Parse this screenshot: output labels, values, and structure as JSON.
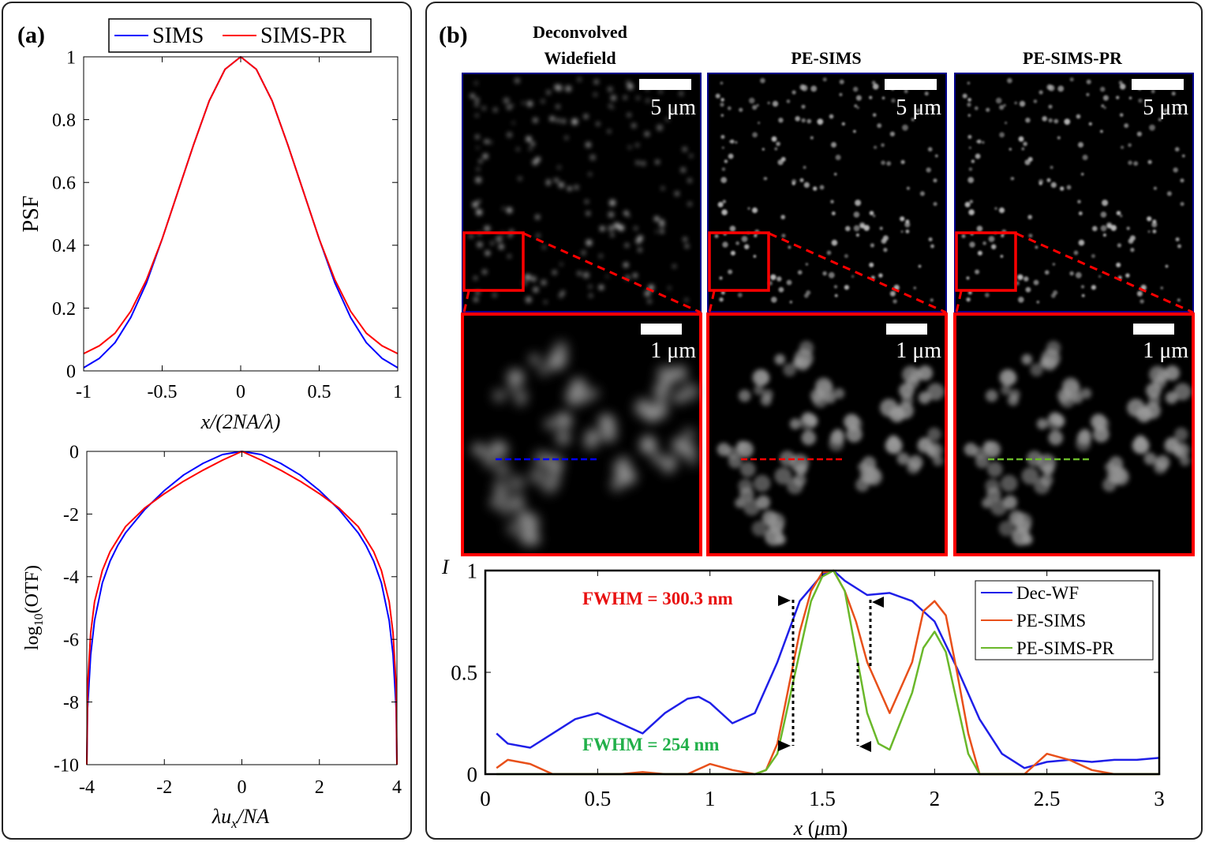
{
  "panel_a": {
    "label": "(a)",
    "legend": [
      "SIMS",
      "SIMS-PR"
    ]
  },
  "panel_b": {
    "label": "(b)",
    "columns": [
      {
        "title_line1": "Deconvolved",
        "title_line2": "Widefield"
      },
      {
        "title_line1": "",
        "title_line2": "PE-SIMS"
      },
      {
        "title_line1": "",
        "title_line2": "PE-SIMS-PR"
      }
    ],
    "scalebar_large": "5 μm",
    "scalebar_small": "1 μm",
    "fwhm_red": "FWHM = 300.3 nm",
    "fwhm_green": "FWHM = 254 nm"
  },
  "colors": {
    "sims": "#0000ff",
    "sims_pr": "#ff0000",
    "dec_wf": "#1f1fe8",
    "pe_sims": "#e8501a",
    "pe_sims_pr": "#6ab82a",
    "zoom_box": "#ff0000",
    "image_frame": "#00008b",
    "fwhm_red_text": "#e81010",
    "fwhm_green_text": "#22b04a"
  },
  "chart_data": [
    {
      "type": "line",
      "xlabel": "x/(2NA/λ)",
      "ylabel": "PSF",
      "xlim": [
        -1,
        1
      ],
      "ylim": [
        0,
        1
      ],
      "xticks": [
        "-1",
        "-0.5",
        "0",
        "0.5",
        "1"
      ],
      "yticks": [
        "0",
        "0.2",
        "0.4",
        "0.6",
        "0.8",
        "1"
      ],
      "legend": "top",
      "series": [
        {
          "name": "SIMS",
          "x": [
            -1,
            -0.9,
            -0.8,
            -0.7,
            -0.6,
            -0.5,
            -0.4,
            -0.3,
            -0.2,
            -0.1,
            0,
            0.1,
            0.2,
            0.3,
            0.4,
            0.5,
            0.6,
            0.7,
            0.8,
            0.9,
            1
          ],
          "values": [
            0.01,
            0.04,
            0.09,
            0.17,
            0.28,
            0.42,
            0.57,
            0.72,
            0.86,
            0.96,
            1,
            0.96,
            0.86,
            0.72,
            0.57,
            0.42,
            0.28,
            0.17,
            0.09,
            0.04,
            0.01
          ]
        },
        {
          "name": "SIMS-PR",
          "x": [
            -1,
            -0.9,
            -0.8,
            -0.7,
            -0.6,
            -0.5,
            -0.4,
            -0.3,
            -0.2,
            -0.1,
            0,
            0.1,
            0.2,
            0.3,
            0.4,
            0.5,
            0.6,
            0.7,
            0.8,
            0.9,
            1
          ],
          "values": [
            0.055,
            0.08,
            0.12,
            0.19,
            0.29,
            0.42,
            0.57,
            0.72,
            0.86,
            0.96,
            1,
            0.96,
            0.86,
            0.72,
            0.57,
            0.42,
            0.29,
            0.19,
            0.12,
            0.08,
            0.055
          ]
        }
      ]
    },
    {
      "type": "line",
      "xlabel": "λu_x/NA",
      "ylabel": "log10(OTF)",
      "xlim": [
        -4,
        4
      ],
      "ylim": [
        -10,
        0
      ],
      "xticks": [
        "-4",
        "-2",
        "0",
        "2",
        "4"
      ],
      "yticks": [
        "-10",
        "-8",
        "-6",
        "-4",
        "-2",
        "0"
      ],
      "series": [
        {
          "name": "SIMS",
          "x": [
            -4,
            -3.98,
            -3.9,
            -3.8,
            -3.6,
            -3.4,
            -3.2,
            -3,
            -2.5,
            -2,
            -1.5,
            -1,
            -0.5,
            0,
            0.5,
            1,
            1.5,
            2,
            2.5,
            3,
            3.2,
            3.4,
            3.6,
            3.8,
            3.9,
            3.98,
            4
          ],
          "values": [
            -10,
            -8.2,
            -6.5,
            -5.4,
            -4.2,
            -3.5,
            -3,
            -2.6,
            -1.85,
            -1.25,
            -0.75,
            -0.38,
            -0.1,
            0,
            -0.1,
            -0.38,
            -0.75,
            -1.25,
            -1.85,
            -2.6,
            -3,
            -3.5,
            -4.2,
            -5.4,
            -6.5,
            -8.2,
            -10
          ]
        },
        {
          "name": "SIMS-PR",
          "x": [
            -4,
            -3.98,
            -3.9,
            -3.8,
            -3.6,
            -3.4,
            -3.2,
            -3,
            -2.5,
            -2,
            -1.5,
            -1,
            -0.5,
            0,
            0.5,
            1,
            1.5,
            2,
            2.5,
            3,
            3.2,
            3.4,
            3.6,
            3.8,
            3.9,
            3.98,
            4
          ],
          "values": [
            -10,
            -7.5,
            -5.8,
            -4.8,
            -3.8,
            -3.2,
            -2.8,
            -2.4,
            -1.8,
            -1.35,
            -0.95,
            -0.6,
            -0.28,
            0,
            -0.28,
            -0.6,
            -0.95,
            -1.35,
            -1.8,
            -2.4,
            -2.8,
            -3.2,
            -3.8,
            -4.8,
            -5.8,
            -7.5,
            -10
          ]
        }
      ]
    },
    {
      "type": "line",
      "xlabel": "x (μm)",
      "ylabel": "I",
      "xlim": [
        0,
        3
      ],
      "ylim": [
        0,
        1
      ],
      "xticks": [
        "0",
        "0.5",
        "1",
        "1.5",
        "2",
        "2.5",
        "3"
      ],
      "yticks": [
        "0",
        "0.5",
        "1"
      ],
      "legend": "top-right",
      "series": [
        {
          "name": "Dec-WF",
          "x": [
            0.05,
            0.1,
            0.2,
            0.3,
            0.4,
            0.5,
            0.6,
            0.7,
            0.8,
            0.9,
            0.95,
            1,
            1.1,
            1.2,
            1.3,
            1.4,
            1.5,
            1.55,
            1.6,
            1.7,
            1.8,
            1.9,
            2,
            2.1,
            2.2,
            2.3,
            2.4,
            2.5,
            2.6,
            2.7,
            2.8,
            2.9,
            3
          ],
          "values": [
            0.2,
            0.15,
            0.13,
            0.2,
            0.27,
            0.3,
            0.25,
            0.2,
            0.3,
            0.37,
            0.38,
            0.35,
            0.25,
            0.3,
            0.55,
            0.85,
            0.98,
            1,
            0.95,
            0.88,
            0.89,
            0.85,
            0.75,
            0.52,
            0.27,
            0.1,
            0.03,
            0.06,
            0.07,
            0.06,
            0.07,
            0.07,
            0.08
          ]
        },
        {
          "name": "PE-SIMS",
          "x": [
            0.05,
            0.1,
            0.2,
            0.3,
            0.4,
            0.5,
            0.6,
            0.7,
            0.8,
            0.9,
            1,
            1.1,
            1.2,
            1.25,
            1.3,
            1.4,
            1.45,
            1.5,
            1.55,
            1.6,
            1.65,
            1.7,
            1.8,
            1.9,
            1.95,
            2,
            2.05,
            2.1,
            2.15,
            2.2,
            2.3,
            2.4,
            2.5,
            2.6,
            2.7,
            2.8,
            3
          ],
          "values": [
            0.03,
            0.07,
            0.05,
            0,
            0,
            0,
            0,
            0.01,
            0,
            0,
            0.05,
            0.02,
            0,
            0.02,
            0.15,
            0.7,
            0.9,
            0.99,
            1,
            0.9,
            0.75,
            0.55,
            0.3,
            0.55,
            0.8,
            0.85,
            0.78,
            0.5,
            0.2,
            0,
            0,
            0,
            0.1,
            0.07,
            0.02,
            0,
            0
          ]
        },
        {
          "name": "PE-SIMS-PR",
          "x": [
            0.05,
            0.5,
            1,
            1.2,
            1.25,
            1.3,
            1.4,
            1.45,
            1.5,
            1.55,
            1.6,
            1.65,
            1.7,
            1.75,
            1.8,
            1.9,
            1.95,
            2,
            2.05,
            2.1,
            2.15,
            2.2,
            2.5,
            3
          ],
          "values": [
            0,
            0,
            0,
            0,
            0.02,
            0.1,
            0.6,
            0.85,
            0.97,
            1,
            0.9,
            0.6,
            0.3,
            0.15,
            0.12,
            0.4,
            0.62,
            0.7,
            0.6,
            0.35,
            0.1,
            0,
            0,
            0
          ]
        }
      ]
    }
  ]
}
